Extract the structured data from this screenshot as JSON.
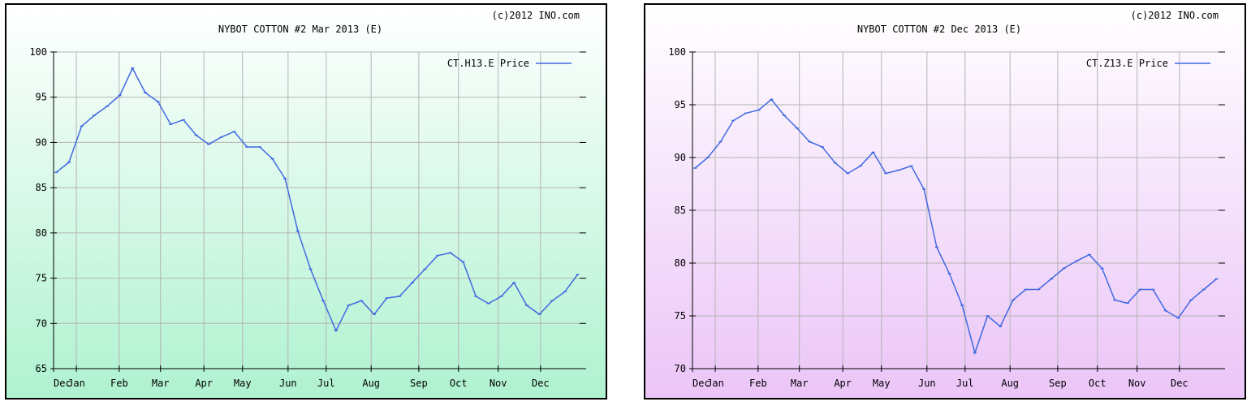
{
  "chart_data": [
    {
      "type": "line",
      "title": "NYBOT COTTON #2 Mar 2013 (E)",
      "copyright": "(c)2012 INO.com",
      "legend": "CT.H13.E Price",
      "legend_position": "top-right",
      "grid": true,
      "series_color": "#4169e1",
      "background_gradient": [
        "#ffffff",
        "#aff2d0"
      ],
      "ylim": [
        65,
        100
      ],
      "yticks": [
        65,
        70,
        75,
        80,
        85,
        90,
        95,
        100
      ],
      "xticks": [
        "Dec",
        "Jan",
        "Feb",
        "Mar",
        "Apr",
        "May",
        "Jun",
        "Jul",
        "Aug",
        "Sep",
        "Oct",
        "Nov",
        "Dec"
      ],
      "x": [
        "Dec",
        "Dec",
        "Jan",
        "Jan",
        "Jan",
        "Feb",
        "Feb",
        "Feb",
        "Feb",
        "Mar",
        "Mar",
        "Mar",
        "Apr",
        "Apr",
        "Apr",
        "Apr",
        "May",
        "May",
        "May",
        "May",
        "Jun",
        "Jun",
        "Jun",
        "Jun",
        "Jul",
        "Jul",
        "Jul",
        "Aug",
        "Aug",
        "Aug",
        "Sep",
        "Sep",
        "Sep",
        "Oct",
        "Oct",
        "Oct",
        "Nov",
        "Nov",
        "Nov",
        "Dec",
        "Dec",
        "Dec"
      ],
      "values": [
        86.7,
        87.8,
        91.8,
        93.0,
        94.0,
        95.2,
        98.2,
        95.5,
        94.5,
        92.0,
        92.5,
        90.8,
        89.8,
        90.6,
        91.2,
        89.5,
        89.5,
        88.2,
        86.0,
        80.2,
        76.0,
        72.5,
        69.2,
        72.0,
        72.5,
        71.0,
        72.8,
        73.0,
        74.5,
        76.0,
        77.5,
        77.8,
        76.8,
        73.0,
        72.2,
        73.0,
        74.5,
        72.0,
        71.0,
        72.5,
        73.5,
        75.4
      ]
    },
    {
      "type": "line",
      "title": "NYBOT COTTON #2 Dec 2013 (E)",
      "copyright": "(c)2012 INO.com",
      "legend": "CT.Z13.E Price",
      "legend_position": "top-right",
      "grid": true,
      "series_color": "#4169e1",
      "background_gradient": [
        "#ffffff",
        "#ebc5f7"
      ],
      "ylim": [
        70,
        100
      ],
      "yticks": [
        70,
        75,
        80,
        85,
        90,
        95,
        100
      ],
      "xticks": [
        "Dec",
        "Jan",
        "Feb",
        "Mar",
        "Apr",
        "May",
        "Jun",
        "Jul",
        "Aug",
        "Sep",
        "Oct",
        "Nov",
        "Dec"
      ],
      "x": [
        "Dec",
        "Dec",
        "Jan",
        "Jan",
        "Jan",
        "Feb",
        "Feb",
        "Feb",
        "Feb",
        "Mar",
        "Mar",
        "Mar",
        "Apr",
        "Apr",
        "Apr",
        "Apr",
        "May",
        "May",
        "May",
        "May",
        "Jun",
        "Jun",
        "Jun",
        "Jun",
        "Jul",
        "Jul",
        "Jul",
        "Aug",
        "Aug",
        "Aug",
        "Sep",
        "Sep",
        "Sep",
        "Oct",
        "Oct",
        "Oct",
        "Nov",
        "Nov",
        "Nov",
        "Dec",
        "Dec",
        "Dec"
      ],
      "values": [
        89.0,
        90.0,
        91.5,
        93.5,
        94.2,
        94.5,
        95.5,
        94.0,
        92.8,
        91.5,
        91.0,
        89.5,
        88.5,
        89.2,
        90.5,
        88.5,
        88.8,
        89.2,
        87.0,
        81.5,
        79.0,
        76.0,
        71.5,
        75.0,
        74.0,
        76.5,
        77.5,
        77.5,
        78.5,
        79.5,
        80.2,
        80.8,
        79.5,
        76.5,
        76.2,
        77.5,
        77.5,
        75.5,
        74.8,
        76.5,
        77.5,
        78.5
      ]
    }
  ]
}
